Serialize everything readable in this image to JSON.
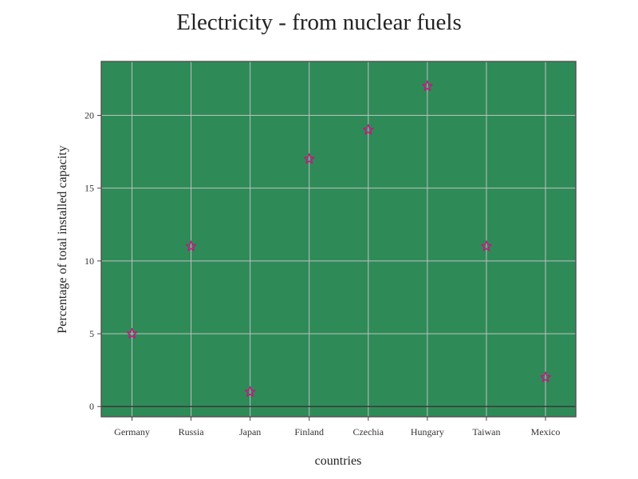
{
  "chart_data": {
    "type": "scatter",
    "title": "Electricity - from nuclear fuels",
    "xlabel": "countries",
    "ylabel": "Percentage of total installed capacity",
    "categories": [
      "Germany",
      "Russia",
      "Japan",
      "Finland",
      "Czechia",
      "Hungary",
      "Taiwan",
      "Mexico"
    ],
    "values": [
      5,
      11,
      1,
      17,
      19,
      22,
      11,
      2
    ],
    "ylim": [
      -0.7,
      23.7
    ],
    "yticks": [
      0,
      5,
      10,
      15,
      20
    ],
    "grid": true,
    "marker": "star-open",
    "colors": {
      "plot_background": "#2e8b57",
      "marker": "#c71585",
      "grid": "#c0c0c0",
      "frame": "#555555"
    }
  }
}
